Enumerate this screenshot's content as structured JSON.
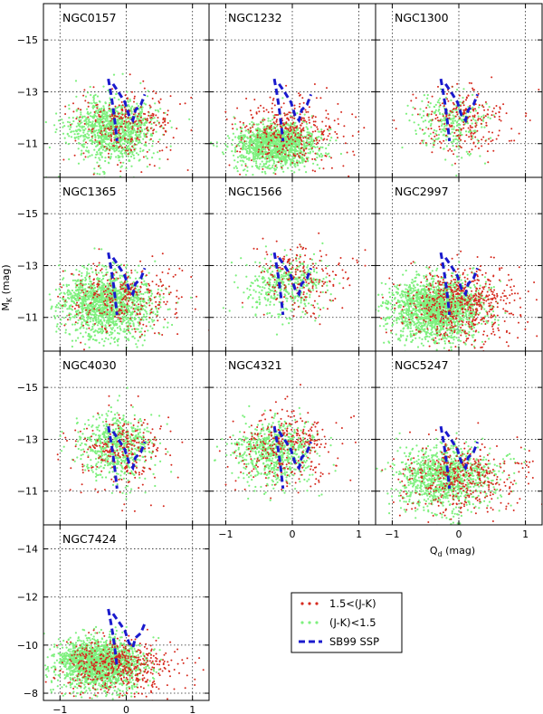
{
  "chart_data": {
    "type": "scatter",
    "xlabel": "Q_d (mag)",
    "ylabel": "M_K (mag)",
    "xlim": [
      -1.25,
      1.25
    ],
    "ylim_default": [
      -9.7,
      -16.4
    ],
    "ylim_last": [
      -7.7,
      -15.0
    ],
    "xticks": [
      -1,
      0,
      1
    ],
    "yticks_default": [
      -15,
      -13,
      -11
    ],
    "yticks_last": [
      -14,
      -12,
      -10,
      -8
    ],
    "grid": true,
    "legend_position": "lower-right",
    "legend": [
      {
        "label": "1.5<(J-K)",
        "color": "#d62a1e",
        "marker": "dot"
      },
      {
        "label": "(J-K)<1.5",
        "color": "#7ef07e",
        "marker": "dot"
      },
      {
        "label": "SB99 SSP",
        "color": "#1a1acd",
        "marker": "dashed-line"
      }
    ],
    "panels": [
      {
        "name": "NGC0157",
        "green": {
          "cx": -0.2,
          "cy": -11.6,
          "sx": 0.32,
          "sy": 0.9,
          "n": 1100
        },
        "red": {
          "cx": 0.0,
          "cy": -11.8,
          "sx": 0.4,
          "sy": 1.0,
          "n": 280
        }
      },
      {
        "name": "NGC1232",
        "green": {
          "cx": -0.25,
          "cy": -11.0,
          "sx": 0.3,
          "sy": 0.6,
          "n": 1400
        },
        "red": {
          "cx": 0.0,
          "cy": -11.5,
          "sx": 0.42,
          "sy": 1.0,
          "n": 380
        }
      },
      {
        "name": "NGC1300",
        "green": {
          "cx": -0.1,
          "cy": -11.8,
          "sx": 0.28,
          "sy": 0.8,
          "n": 280
        },
        "red": {
          "cx": 0.05,
          "cy": -12.0,
          "sx": 0.35,
          "sy": 0.9,
          "n": 240
        }
      },
      {
        "name": "NGC1365",
        "green": {
          "cx": -0.3,
          "cy": -11.6,
          "sx": 0.35,
          "sy": 0.9,
          "n": 1500
        },
        "red": {
          "cx": -0.05,
          "cy": -11.8,
          "sx": 0.45,
          "sy": 1.0,
          "n": 330
        }
      },
      {
        "name": "NGC1566",
        "green": {
          "cx": -0.1,
          "cy": -12.3,
          "sx": 0.3,
          "sy": 0.8,
          "n": 420
        },
        "red": {
          "cx": 0.15,
          "cy": -12.6,
          "sx": 0.35,
          "sy": 1.0,
          "n": 200
        }
      },
      {
        "name": "NGC2997",
        "green": {
          "cx": -0.35,
          "cy": -11.4,
          "sx": 0.35,
          "sy": 0.8,
          "n": 1800
        },
        "red": {
          "cx": 0.05,
          "cy": -11.6,
          "sx": 0.42,
          "sy": 1.0,
          "n": 600
        }
      },
      {
        "name": "NGC4030",
        "green": {
          "cx": -0.15,
          "cy": -12.8,
          "sx": 0.28,
          "sy": 0.9,
          "n": 600
        },
        "red": {
          "cx": -0.05,
          "cy": -12.7,
          "sx": 0.38,
          "sy": 1.0,
          "n": 260
        }
      },
      {
        "name": "NGC4321",
        "green": {
          "cx": -0.25,
          "cy": -12.6,
          "sx": 0.3,
          "sy": 0.8,
          "n": 700
        },
        "red": {
          "cx": -0.05,
          "cy": -12.8,
          "sx": 0.38,
          "sy": 1.0,
          "n": 330
        }
      },
      {
        "name": "NGC5247",
        "green": {
          "cx": -0.2,
          "cy": -11.6,
          "sx": 0.35,
          "sy": 0.9,
          "n": 1100
        },
        "red": {
          "cx": 0.05,
          "cy": -11.6,
          "sx": 0.45,
          "sy": 1.0,
          "n": 420
        }
      },
      {
        "name": "NGC7424",
        "green": {
          "cx": -0.4,
          "cy": -9.3,
          "sx": 0.3,
          "sy": 0.7,
          "n": 2000
        },
        "red": {
          "cx": -0.1,
          "cy": -9.2,
          "sx": 0.45,
          "sy": 0.9,
          "n": 500
        }
      }
    ],
    "ssp_track": [
      [
        -0.27,
        -13.5
      ],
      [
        -0.23,
        -12.9
      ],
      [
        -0.2,
        -12.4
      ],
      [
        -0.17,
        -11.8
      ],
      [
        -0.14,
        -11.1
      ],
      [
        -0.2,
        -13.3
      ],
      [
        -0.12,
        -13.0
      ],
      [
        -0.02,
        -12.6
      ],
      [
        0.04,
        -12.1
      ],
      [
        0.1,
        -11.9
      ],
      [
        0.14,
        -12.3
      ],
      [
        0.22,
        -12.5
      ],
      [
        0.28,
        -12.9
      ]
    ]
  }
}
